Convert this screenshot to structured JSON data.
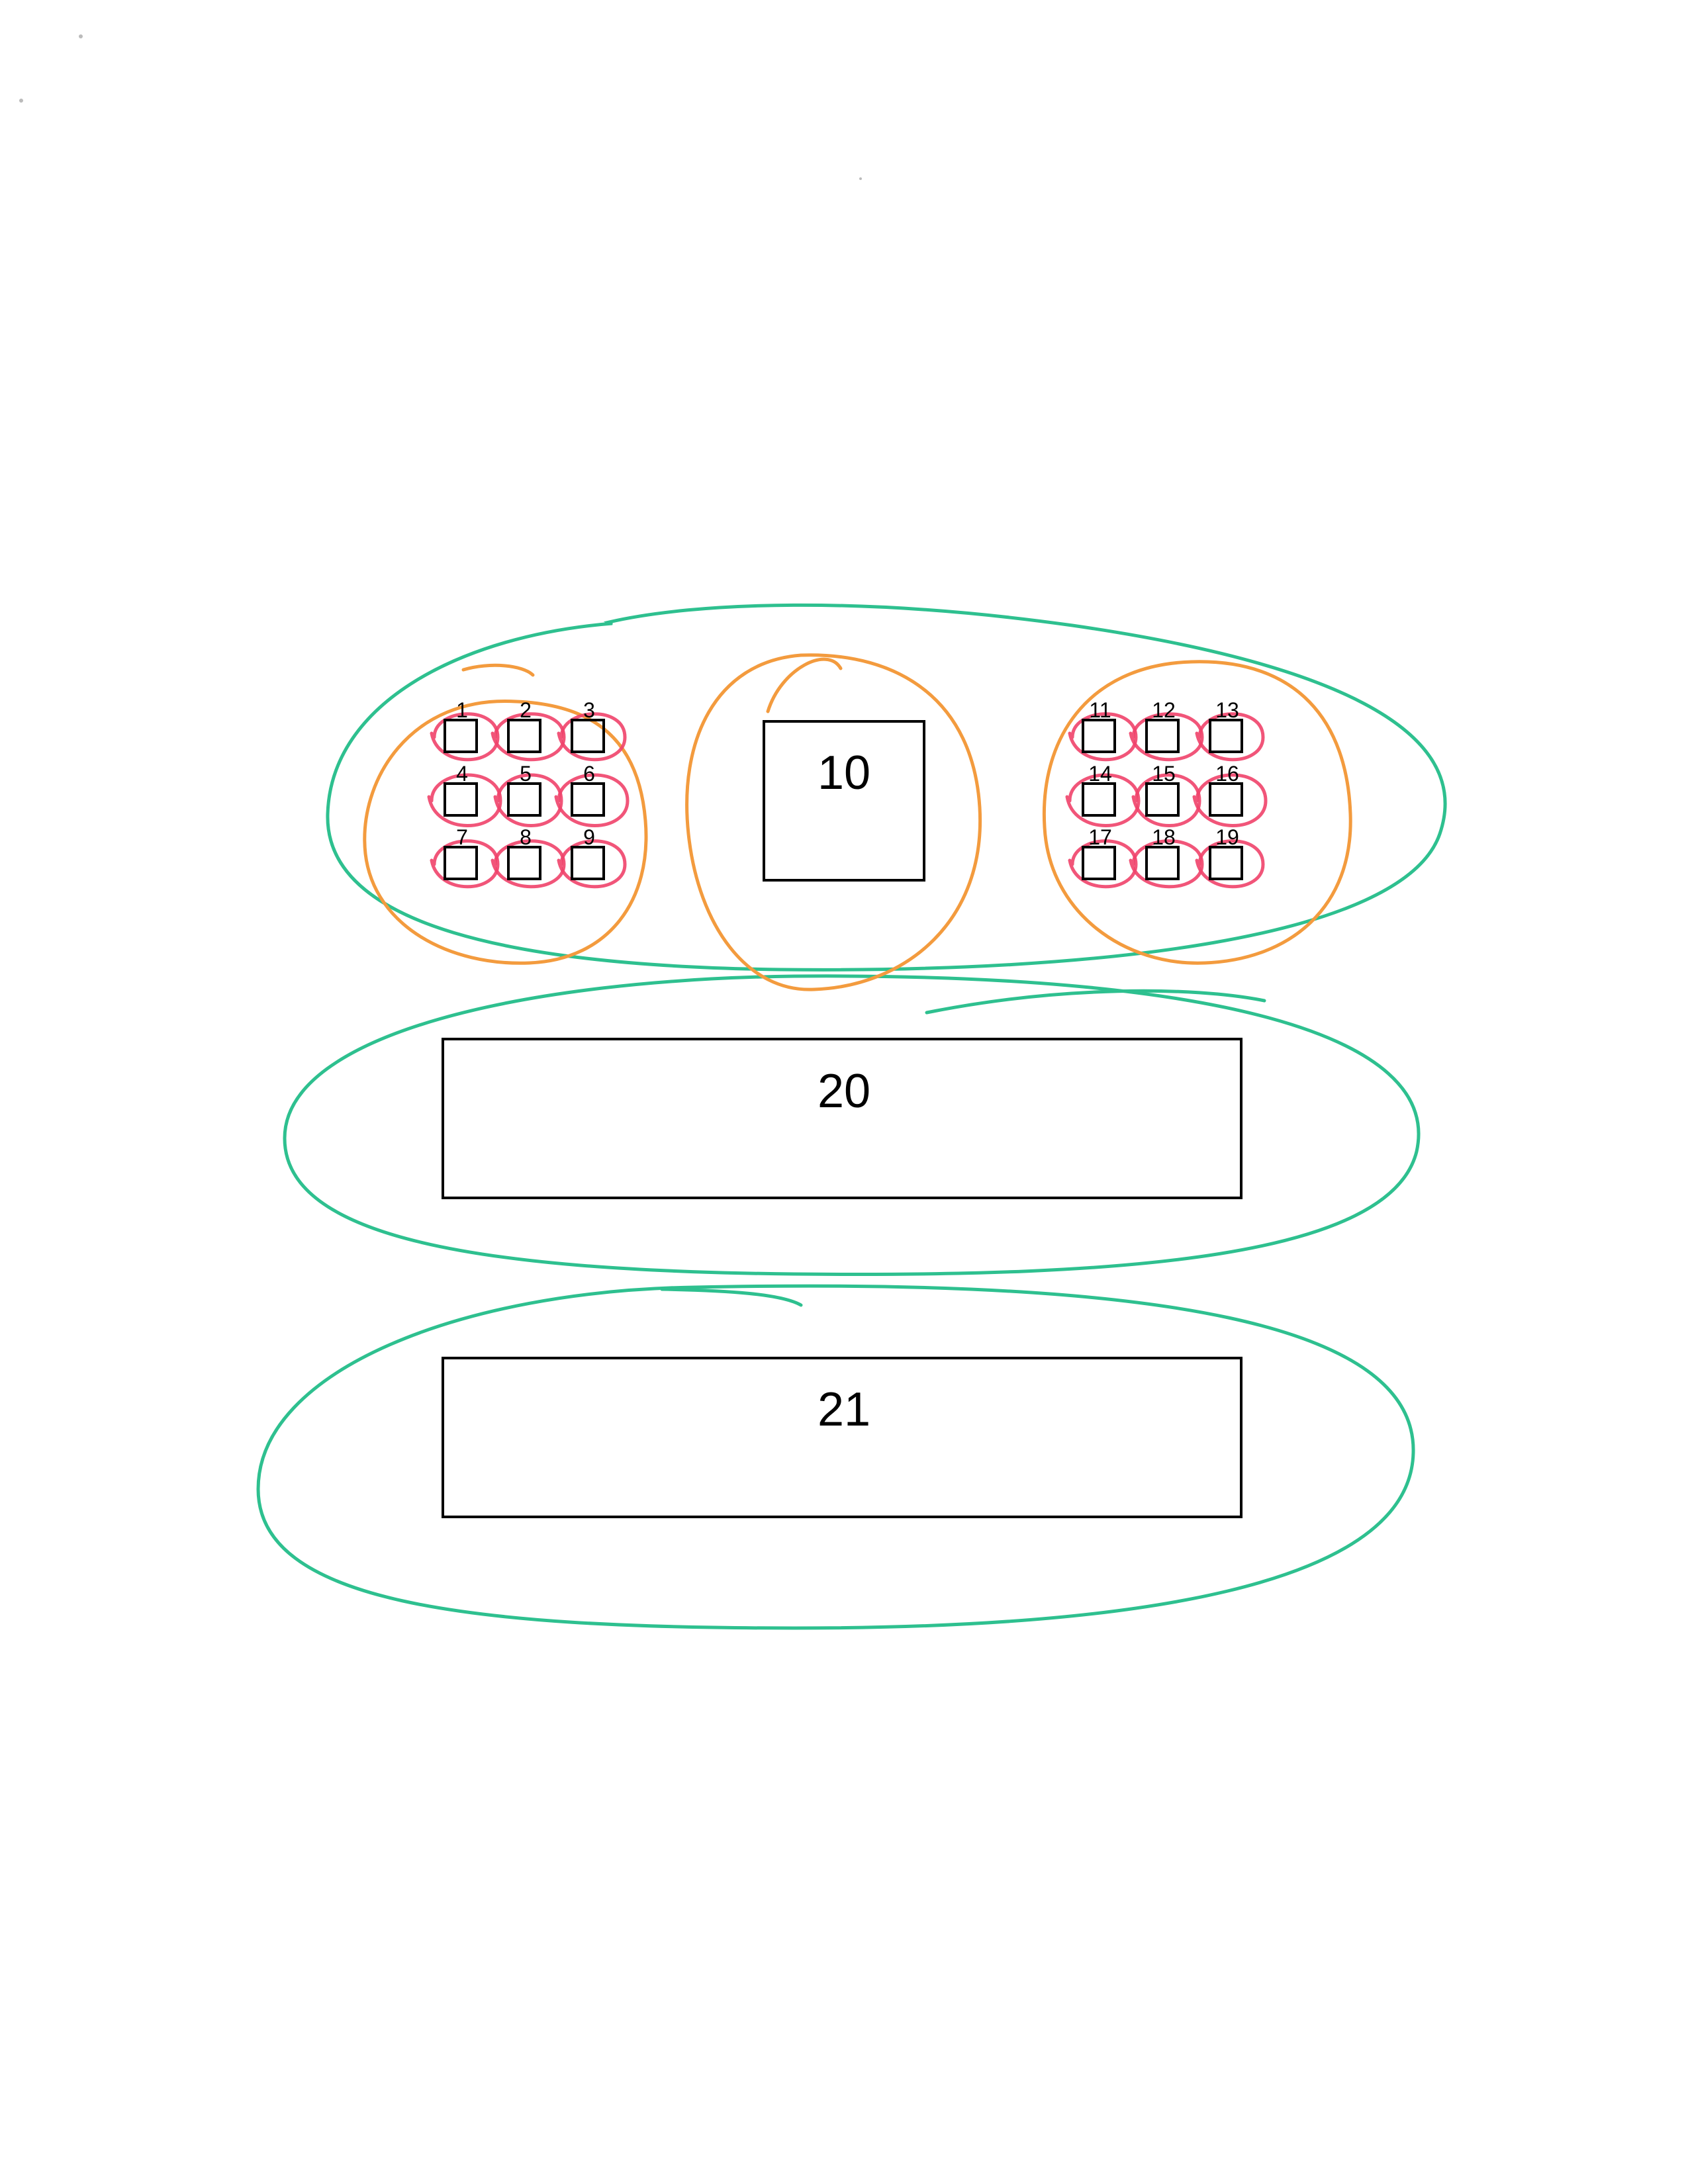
{
  "small_boxes": [
    {
      "label": "1"
    },
    {
      "label": "2"
    },
    {
      "label": "3"
    },
    {
      "label": "4"
    },
    {
      "label": "5"
    },
    {
      "label": "6"
    },
    {
      "label": "7"
    },
    {
      "label": "8"
    },
    {
      "label": "9"
    },
    {
      "label": "11"
    },
    {
      "label": "12"
    },
    {
      "label": "13"
    },
    {
      "label": "14"
    },
    {
      "label": "15"
    },
    {
      "label": "16"
    },
    {
      "label": "17"
    },
    {
      "label": "18"
    },
    {
      "label": "19"
    }
  ],
  "large_boxes": {
    "box_10": "10",
    "box_20": "20",
    "box_21": "21"
  },
  "ink_colors": {
    "green": "#2ec08f",
    "orange": "#f39b3e",
    "red": "#f0436a"
  }
}
